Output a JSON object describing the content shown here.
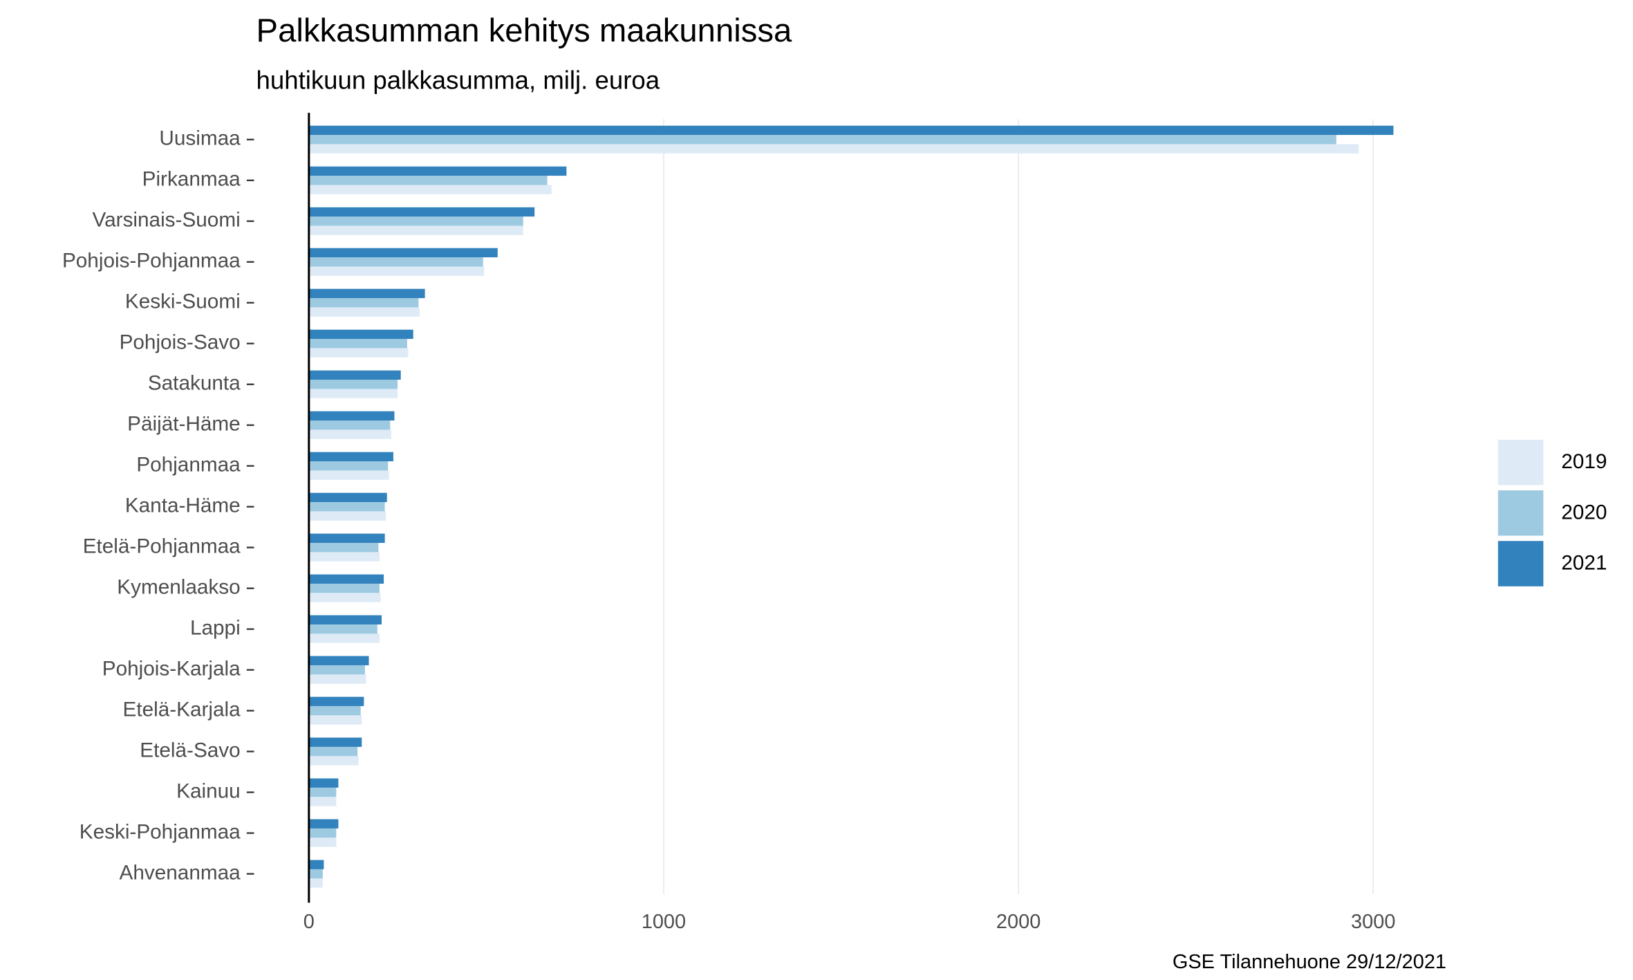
{
  "chart_data": {
    "type": "grouped-hbar",
    "title": "Palkkasumman kehitys maakunnissa",
    "subtitle": "huhtikuun palkkasumma, milj. euroa",
    "caption": "GSE Tilannehuone 29/12/2021",
    "categories": [
      "Uusimaa",
      "Pirkanmaa",
      "Varsinais-Suomi",
      "Pohjois-Pohjanmaa",
      "Keski-Suomi",
      "Pohjois-Savo",
      "Satakunta",
      "Päijät-Häme",
      "Pohjanmaa",
      "Kanta-Häme",
      "Etelä-Pohjanmaa",
      "Kymenlaakso",
      "Lappi",
      "Pohjois-Karjala",
      "Etelä-Karjala",
      "Etelä-Savo",
      "Kainuu",
      "Keski-Pohjanmaa",
      "Ahvenanmaa"
    ],
    "series": [
      {
        "name": "2019",
        "color": "#deebf7",
        "values": [
          2959,
          684,
          604,
          494,
          312,
          280,
          250,
          232,
          226,
          217,
          199,
          202,
          199,
          161,
          149,
          140,
          77,
          77,
          39
        ]
      },
      {
        "name": "2020",
        "color": "#9ecae1",
        "values": [
          2896,
          672,
          604,
          491,
          309,
          277,
          250,
          229,
          223,
          214,
          196,
          199,
          193,
          158,
          146,
          137,
          77,
          77,
          39
        ]
      },
      {
        "name": "2021",
        "color": "#3182bd",
        "values": [
          3057,
          726,
          636,
          532,
          327,
          294,
          259,
          241,
          238,
          220,
          214,
          211,
          205,
          169,
          155,
          149,
          83,
          83,
          42
        ]
      }
    ],
    "xlim": [
      0,
      3230
    ],
    "xticks": [
      0,
      1000,
      2000,
      3000
    ],
    "grid": true,
    "legend": "right"
  }
}
